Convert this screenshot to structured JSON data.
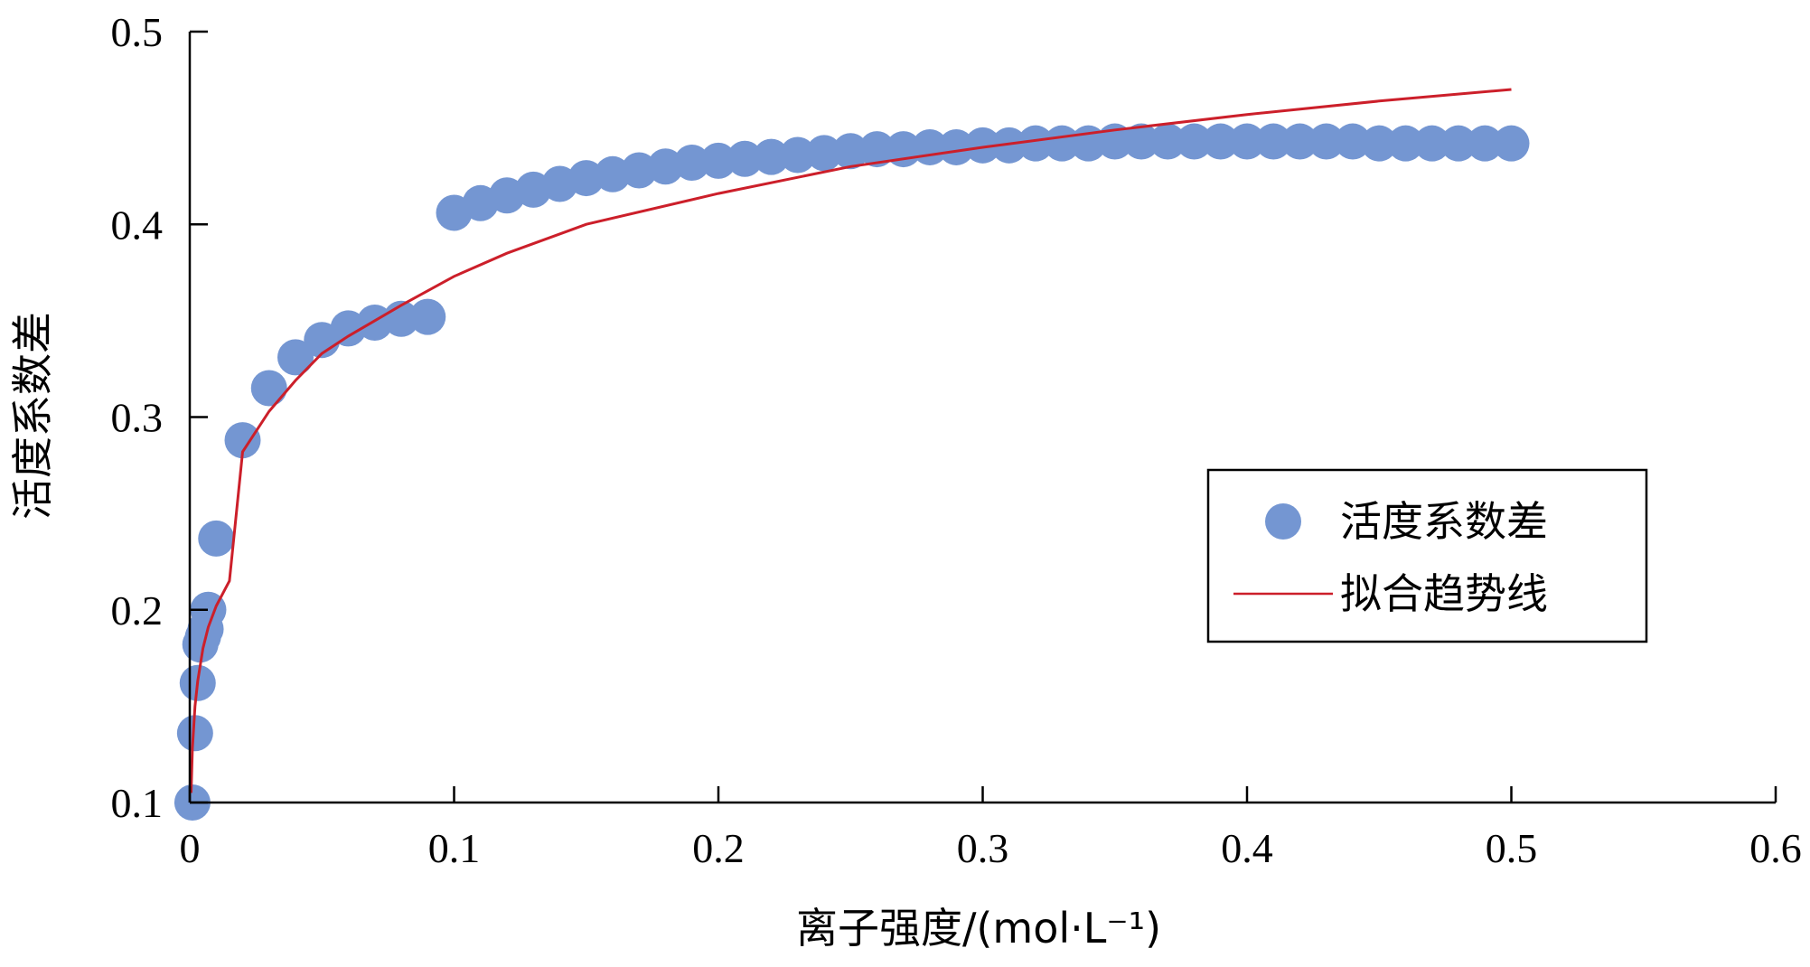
{
  "colors": {
    "points": "#7496d2",
    "trendline": "#cc1f2a",
    "axis": "#000000"
  },
  "chart_data": {
    "type": "scatter",
    "xlabel": "离子强度/(mol·L⁻¹)",
    "ylabel": "活度系数差",
    "xlim": [
      0,
      0.6
    ],
    "ylim": [
      0.1,
      0.5
    ],
    "x_ticks": [
      "0",
      "0.1",
      "0.2",
      "0.3",
      "0.4",
      "0.5",
      "0.6"
    ],
    "y_ticks": [
      "0.1",
      "0.2",
      "0.3",
      "0.4",
      "0.5"
    ],
    "grid": false,
    "legend_position": "bottom-right",
    "series": [
      {
        "name": "活度系数差",
        "kind": "scatter",
        "points": [
          [
            0.001,
            0.1
          ],
          [
            0.002,
            0.136
          ],
          [
            0.003,
            0.162
          ],
          [
            0.004,
            0.182
          ],
          [
            0.005,
            0.186
          ],
          [
            0.006,
            0.19
          ],
          [
            0.007,
            0.2
          ],
          [
            0.01,
            0.237
          ],
          [
            0.02,
            0.288
          ],
          [
            0.03,
            0.315
          ],
          [
            0.04,
            0.331
          ],
          [
            0.05,
            0.34
          ],
          [
            0.06,
            0.346
          ],
          [
            0.07,
            0.349
          ],
          [
            0.08,
            0.351
          ],
          [
            0.09,
            0.352
          ],
          [
            0.1,
            0.406
          ],
          [
            0.11,
            0.411
          ],
          [
            0.12,
            0.415
          ],
          [
            0.13,
            0.418
          ],
          [
            0.14,
            0.421
          ],
          [
            0.15,
            0.424
          ],
          [
            0.16,
            0.426
          ],
          [
            0.17,
            0.428
          ],
          [
            0.18,
            0.43
          ],
          [
            0.19,
            0.432
          ],
          [
            0.2,
            0.433
          ],
          [
            0.21,
            0.434
          ],
          [
            0.22,
            0.435
          ],
          [
            0.23,
            0.436
          ],
          [
            0.24,
            0.437
          ],
          [
            0.25,
            0.438
          ],
          [
            0.26,
            0.439
          ],
          [
            0.27,
            0.439
          ],
          [
            0.28,
            0.44
          ],
          [
            0.29,
            0.44
          ],
          [
            0.3,
            0.441
          ],
          [
            0.31,
            0.441
          ],
          [
            0.32,
            0.442
          ],
          [
            0.33,
            0.442
          ],
          [
            0.34,
            0.442
          ],
          [
            0.35,
            0.443
          ],
          [
            0.36,
            0.443
          ],
          [
            0.37,
            0.443
          ],
          [
            0.38,
            0.443
          ],
          [
            0.39,
            0.443
          ],
          [
            0.4,
            0.443
          ],
          [
            0.41,
            0.443
          ],
          [
            0.42,
            0.443
          ],
          [
            0.43,
            0.443
          ],
          [
            0.44,
            0.443
          ],
          [
            0.45,
            0.442
          ],
          [
            0.46,
            0.442
          ],
          [
            0.47,
            0.442
          ],
          [
            0.48,
            0.442
          ],
          [
            0.49,
            0.442
          ],
          [
            0.5,
            0.442
          ]
        ]
      },
      {
        "name": "拟合趋势线",
        "kind": "line",
        "points": [
          [
            0.0005,
            0.105
          ],
          [
            0.001,
            0.128
          ],
          [
            0.002,
            0.15
          ],
          [
            0.003,
            0.163
          ],
          [
            0.005,
            0.18
          ],
          [
            0.007,
            0.191
          ],
          [
            0.01,
            0.202
          ],
          [
            0.015,
            0.215
          ],
          [
            0.02,
            0.282
          ],
          [
            0.03,
            0.303
          ],
          [
            0.04,
            0.319
          ],
          [
            0.05,
            0.333
          ],
          [
            0.06,
            0.342
          ],
          [
            0.08,
            0.358
          ],
          [
            0.1,
            0.373
          ],
          [
            0.12,
            0.385
          ],
          [
            0.15,
            0.4
          ],
          [
            0.2,
            0.416
          ],
          [
            0.25,
            0.43
          ],
          [
            0.3,
            0.44
          ],
          [
            0.35,
            0.449
          ],
          [
            0.4,
            0.457
          ],
          [
            0.45,
            0.464
          ],
          [
            0.5,
            0.47
          ]
        ]
      }
    ]
  }
}
